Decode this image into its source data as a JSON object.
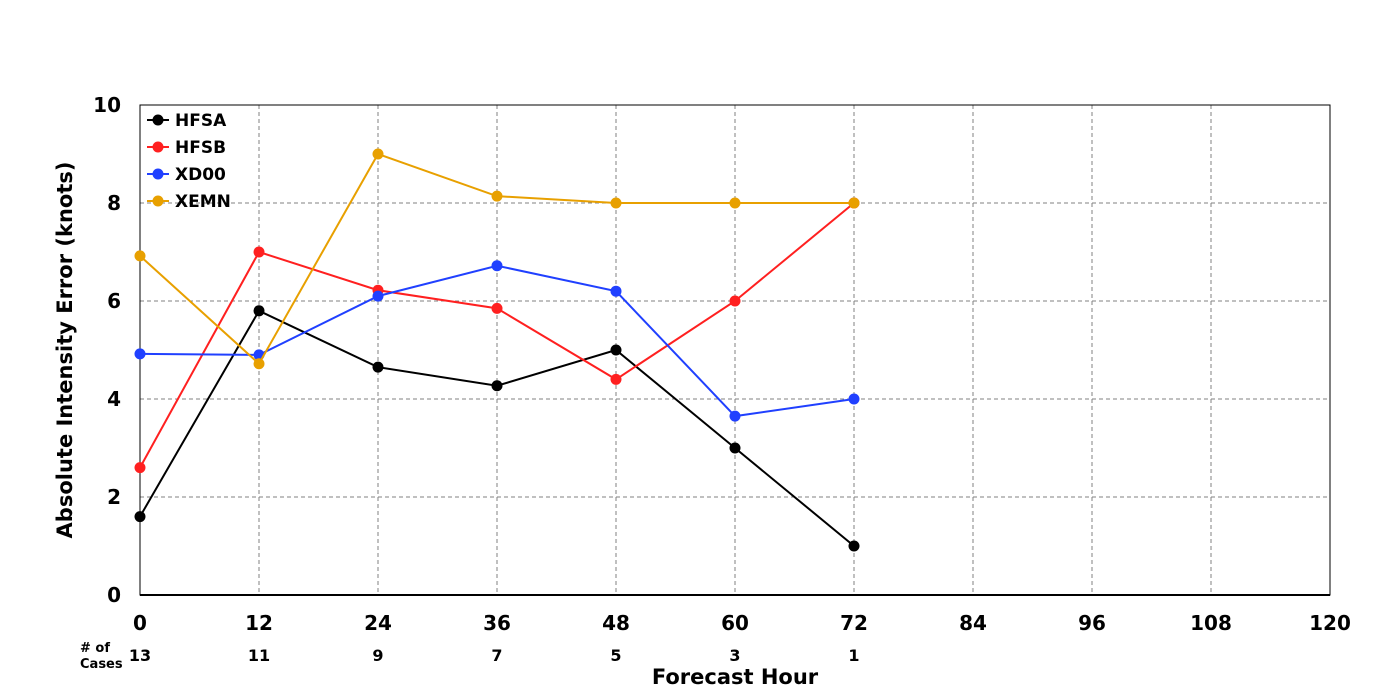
{
  "chart_data": {
    "type": "line",
    "title": "",
    "xlabel": "Forecast Hour",
    "ylabel": "Absolute Intensity Error (knots)",
    "xlim": [
      0,
      120
    ],
    "ylim": [
      0,
      10
    ],
    "x_ticks": [
      0,
      12,
      24,
      36,
      48,
      60,
      72,
      84,
      96,
      108,
      120
    ],
    "y_ticks": [
      0,
      2,
      4,
      6,
      8,
      10
    ],
    "grid": true,
    "legend_position": "top-left",
    "x": [
      0,
      12,
      24,
      36,
      48,
      60,
      72
    ],
    "series": [
      {
        "name": "HFSA",
        "color": "#000000",
        "values": [
          1.6,
          5.8,
          4.65,
          4.27,
          5.0,
          3.0,
          1.0
        ]
      },
      {
        "name": "HFSB",
        "color": "#ff2020",
        "values": [
          2.6,
          7.0,
          6.22,
          5.85,
          4.4,
          6.0,
          8.0
        ]
      },
      {
        "name": "XD00",
        "color": "#2040ff",
        "values": [
          4.92,
          4.9,
          6.1,
          6.72,
          6.2,
          3.65,
          4.0
        ]
      },
      {
        "name": "XEMN",
        "color": "#e8a000",
        "values": [
          6.92,
          4.72,
          9.0,
          8.14,
          8.0,
          8.0,
          8.0
        ]
      }
    ],
    "cases_title": [
      "# of",
      "Cases"
    ],
    "cases": [
      "13",
      "11",
      "9",
      "7",
      "5",
      "3",
      "1"
    ]
  }
}
